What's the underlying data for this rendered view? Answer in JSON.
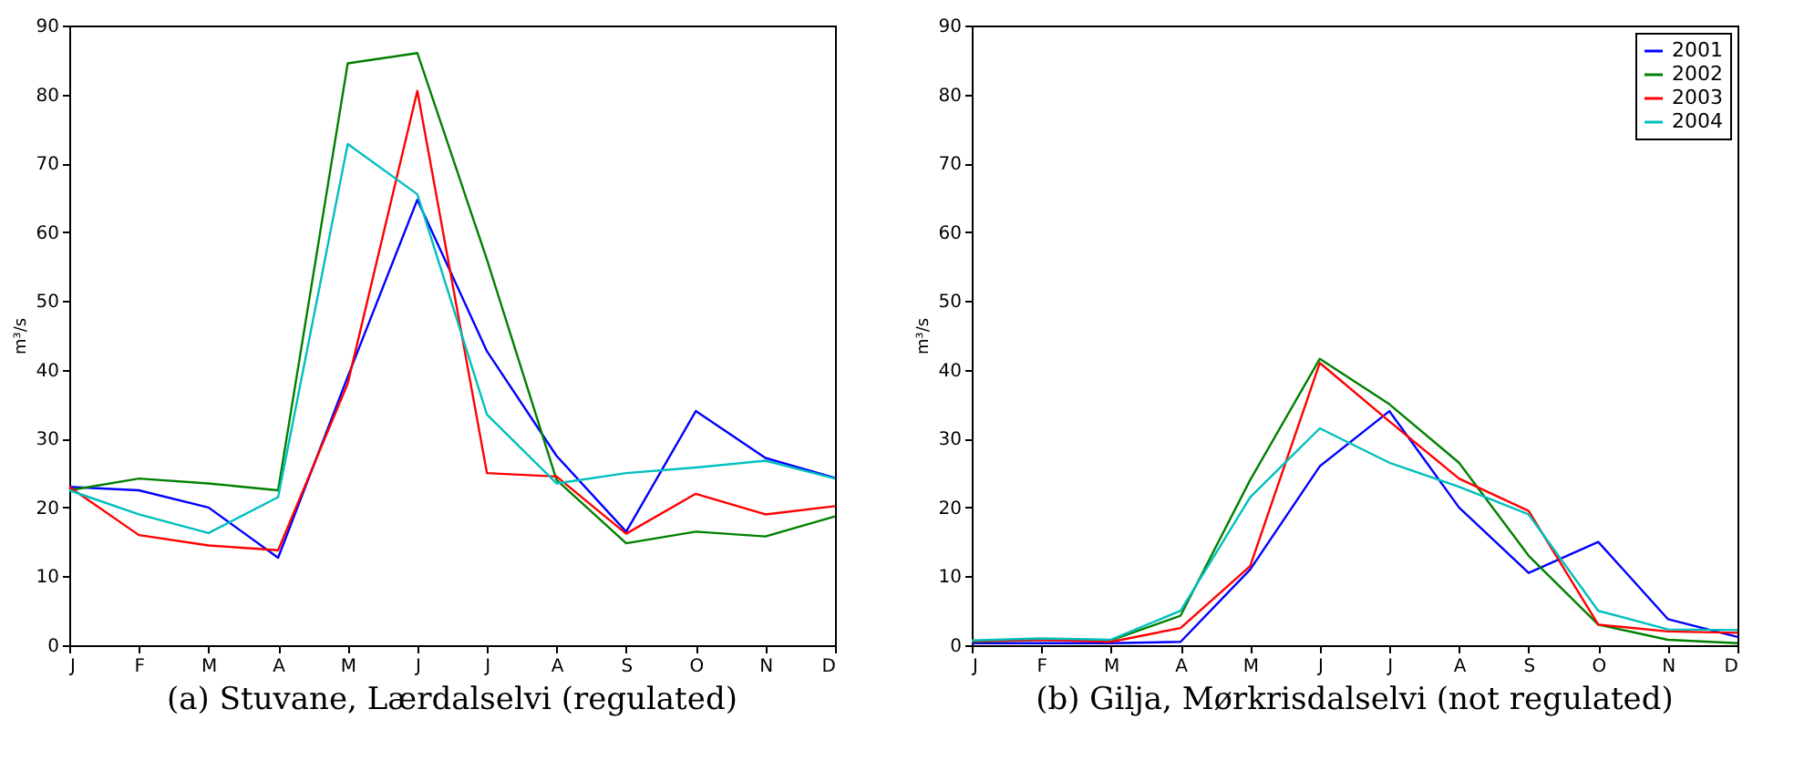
{
  "chart_data": [
    {
      "type": "line",
      "title": "(a) Stuvane, Lærdalselvi (regulated)",
      "ylabel": "m³/s",
      "categories": [
        "J",
        "F",
        "M",
        "A",
        "M",
        "J",
        "J",
        "A",
        "S",
        "O",
        "N",
        "D"
      ],
      "ylim": [
        0,
        90
      ],
      "yticks": [
        0,
        10,
        20,
        30,
        40,
        50,
        60,
        70,
        80,
        90
      ],
      "grid": false,
      "series": [
        {
          "color": "#0000ff",
          "values": [
            23,
            22.5,
            20,
            12.7,
            39,
            64.7,
            42.7,
            27.5,
            16.5,
            34,
            27.2,
            24.3
          ]
        },
        {
          "color": "#008000",
          "values": [
            22.5,
            24.2,
            23.5,
            22.5,
            84.5,
            86,
            56,
            24,
            14.8,
            16.5,
            15.8,
            18.7
          ]
        },
        {
          "color": "#ff0000",
          "values": [
            23,
            16,
            14.5,
            13.8,
            38,
            80.5,
            25,
            24.5,
            16.2,
            22,
            19,
            20.2
          ]
        },
        {
          "color": "#00bfbf",
          "values": [
            22.5,
            19,
            16.3,
            21.5,
            72.8,
            65.5,
            33.5,
            23.5,
            25,
            25.8,
            26.8,
            24.2
          ]
        }
      ]
    },
    {
      "type": "line",
      "title": "(b) Gilja, Mørkrisdalselvi (not regulated)",
      "ylabel": "m³/s",
      "categories": [
        "J",
        "F",
        "M",
        "A",
        "M",
        "J",
        "J",
        "A",
        "S",
        "O",
        "N",
        "D"
      ],
      "ylim": [
        0,
        90
      ],
      "yticks": [
        0,
        10,
        20,
        30,
        40,
        50,
        60,
        70,
        80,
        90
      ],
      "grid": false,
      "legend": "top right",
      "series": [
        {
          "name": "2001",
          "color": "#0000ff",
          "values": [
            0.3,
            0.3,
            0.3,
            0.5,
            11,
            26,
            34,
            20,
            10.5,
            15,
            3.8,
            1.2
          ]
        },
        {
          "name": "2002",
          "color": "#008000",
          "values": [
            0.5,
            0.8,
            0.7,
            4.3,
            24,
            41.6,
            35,
            26.5,
            13,
            3,
            0.8,
            0.3
          ]
        },
        {
          "name": "2003",
          "color": "#ff0000",
          "values": [
            0.6,
            0.8,
            0.5,
            2.5,
            11.5,
            41,
            32.5,
            24.2,
            19.5,
            3,
            2,
            1.8
          ]
        },
        {
          "name": "2004",
          "color": "#00bfbf",
          "values": [
            0.7,
            1,
            0.8,
            5,
            21.5,
            31.5,
            26.5,
            23,
            19,
            5,
            2.3,
            2.2
          ]
        }
      ]
    }
  ]
}
